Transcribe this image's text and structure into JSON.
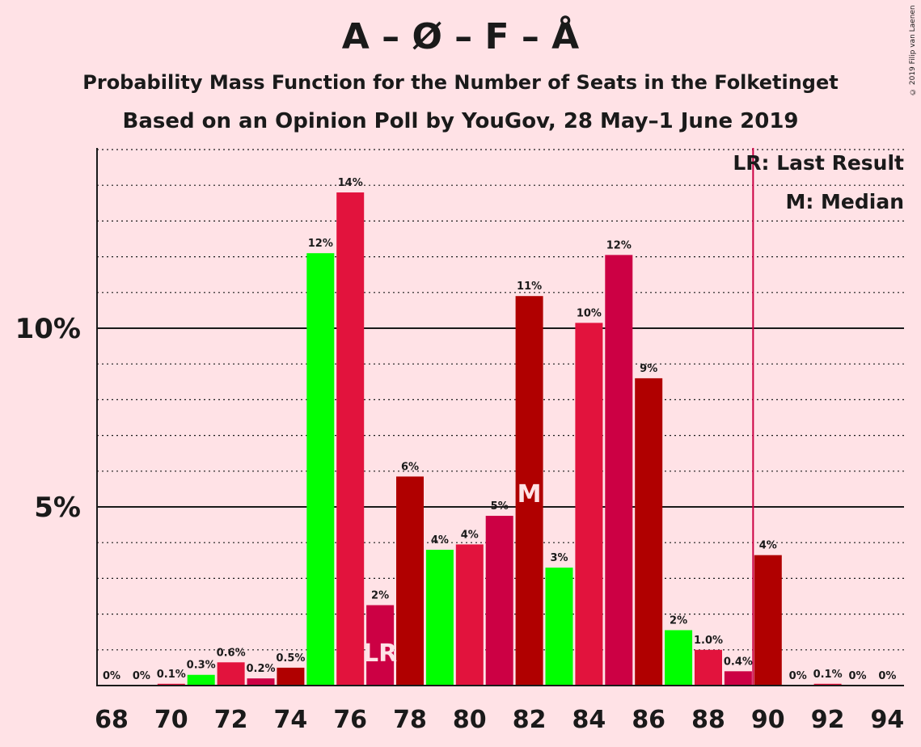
{
  "chart_data": {
    "type": "bar",
    "title": "A – Ø – F – Å",
    "subtitle": "Probability Mass Function for the Number of Seats in the Folketinget",
    "subtitle2": "Based on an Opinion Poll by YouGov, 28 May–1 June 2019",
    "copyright": "© 2019 Filip van Laenen",
    "xlabel": "",
    "ylabel": "",
    "x": [
      68,
      69,
      70,
      71,
      72,
      73,
      74,
      75,
      76,
      77,
      78,
      79,
      80,
      81,
      82,
      83,
      84,
      85,
      86,
      87,
      88,
      89,
      90,
      91,
      92,
      93,
      94
    ],
    "values": [
      0,
      0,
      0.05,
      0.3,
      0.65,
      0.2,
      0.5,
      12.1,
      13.8,
      2.25,
      5.85,
      3.8,
      3.95,
      4.75,
      10.9,
      3.3,
      10.15,
      12.05,
      8.6,
      1.55,
      1.0,
      0.4,
      3.65,
      0,
      0.05,
      0,
      0
    ],
    "labels": [
      "0%",
      "0%",
      "0.1%",
      "0.3%",
      "0.6%",
      "0.2%",
      "0.5%",
      "12%",
      "14%",
      "2%",
      "6%",
      "4%",
      "4%",
      "5%",
      "11%",
      "3%",
      "10%",
      "12%",
      "9%",
      "2%",
      "1.0%",
      "0.4%",
      "4%",
      "0%",
      "0.1%",
      "0%",
      "0%"
    ],
    "colors": [
      "#00FF00",
      "#00FF00",
      "#E2133D",
      "#00FF00",
      "#E2133D",
      "#CC0044",
      "#B00000",
      "#00FF00",
      "#E2133D",
      "#CC0044",
      "#B00000",
      "#00FF00",
      "#E2133D",
      "#CC0044",
      "#B00000",
      "#00FF00",
      "#E2133D",
      "#CC0044",
      "#B00000",
      "#00FF00",
      "#E2133D",
      "#CC0044",
      "#B00000",
      "#00FF00",
      "#E2133D",
      "#CC0044",
      "#B00000"
    ],
    "x_tick_labels": [
      "68",
      "70",
      "72",
      "74",
      "76",
      "78",
      "80",
      "82",
      "84",
      "86",
      "88",
      "90",
      "92",
      "94"
    ],
    "y_ticks": [
      {
        "value": 5,
        "label": "5%"
      },
      {
        "value": 10,
        "label": "10%"
      }
    ],
    "ylim": [
      0,
      15
    ],
    "minor_grid_step": 1,
    "last_result": {
      "seat": 77,
      "marker": "LR",
      "line_after_seat": 89.5,
      "line_color": "#CC0044"
    },
    "median": {
      "seat": 82,
      "marker": "M"
    },
    "legend": [
      "LR: Last Result",
      "M: Median"
    ],
    "legend_position": "top-right"
  }
}
